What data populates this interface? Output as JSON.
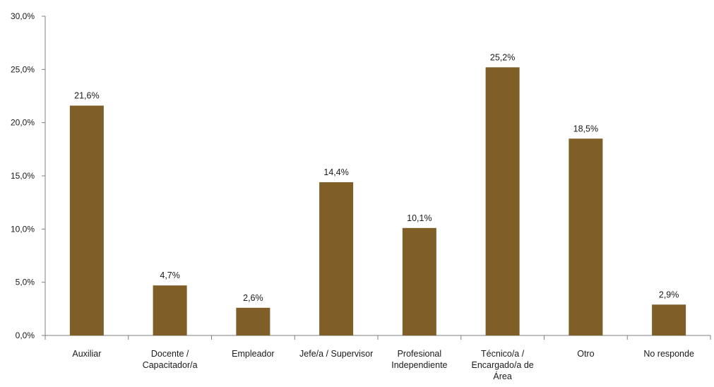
{
  "chart_data": {
    "type": "bar",
    "title": "",
    "xlabel": "",
    "ylabel": "",
    "categories": [
      [
        "Auxiliar"
      ],
      [
        "Docente /",
        "Capacitador/a"
      ],
      [
        "Empleador"
      ],
      [
        "Jefe/a / Supervisor"
      ],
      [
        "Profesional",
        "Independiente"
      ],
      [
        "Técnico/a /",
        "Encargado/a de",
        "Área"
      ],
      [
        "Otro"
      ],
      [
        "No responde"
      ]
    ],
    "values": [
      21.6,
      4.7,
      2.6,
      14.4,
      10.1,
      25.2,
      18.5,
      2.9
    ],
    "value_labels": [
      "21,6%",
      "4,7%",
      "2,6%",
      "14,4%",
      "10,1%",
      "25,2%",
      "18,5%",
      "2,9%"
    ],
    "ylim": [
      0,
      30
    ],
    "y_ticks": [
      0,
      5,
      10,
      15,
      20,
      25,
      30
    ],
    "y_tick_labels": [
      "0,0%",
      "5,0%",
      "10,0%",
      "15,0%",
      "20,0%",
      "25,0%",
      "30,0%"
    ],
    "grid": false,
    "legend": "none",
    "bar_color": "#7f5f27",
    "axis_color": "#7f7f7f"
  }
}
